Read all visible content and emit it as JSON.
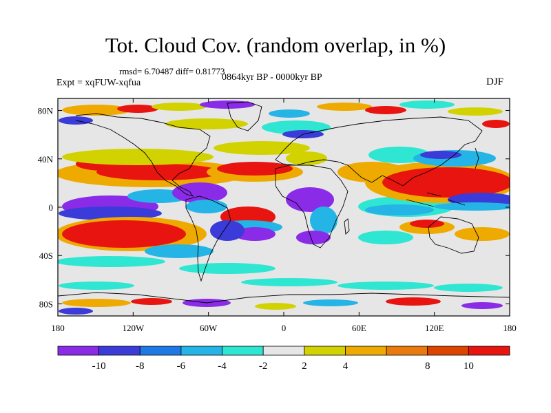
{
  "header": {
    "title": "Tot. Cloud Cov. (random overlap, in %)",
    "stats": "rmsd= 6.70487 diff= 0.81773",
    "period": "0864kyr BP - 0000kyr BP",
    "experiment": "Expt = xqFUW-xqfua",
    "season": "DJF"
  },
  "map": {
    "lon_ticks": [
      "180",
      "120W",
      "60W",
      "0",
      "60E",
      "120E",
      "180"
    ],
    "lat_ticks": [
      "80N",
      "40N",
      "0",
      "40S",
      "80S"
    ]
  },
  "colorbar": {
    "colors": [
      "#8a2be8",
      "#3b3bd9",
      "#1e78e6",
      "#24b4e6",
      "#2ee6d2",
      "#e6e6e6",
      "#d2d200",
      "#eeaa00",
      "#ea7a0e",
      "#dc4400",
      "#e81410"
    ],
    "labels": [
      "-10",
      "-8",
      "-6",
      "-4",
      "-2",
      "2",
      "4",
      "8",
      "10"
    ]
  }
}
